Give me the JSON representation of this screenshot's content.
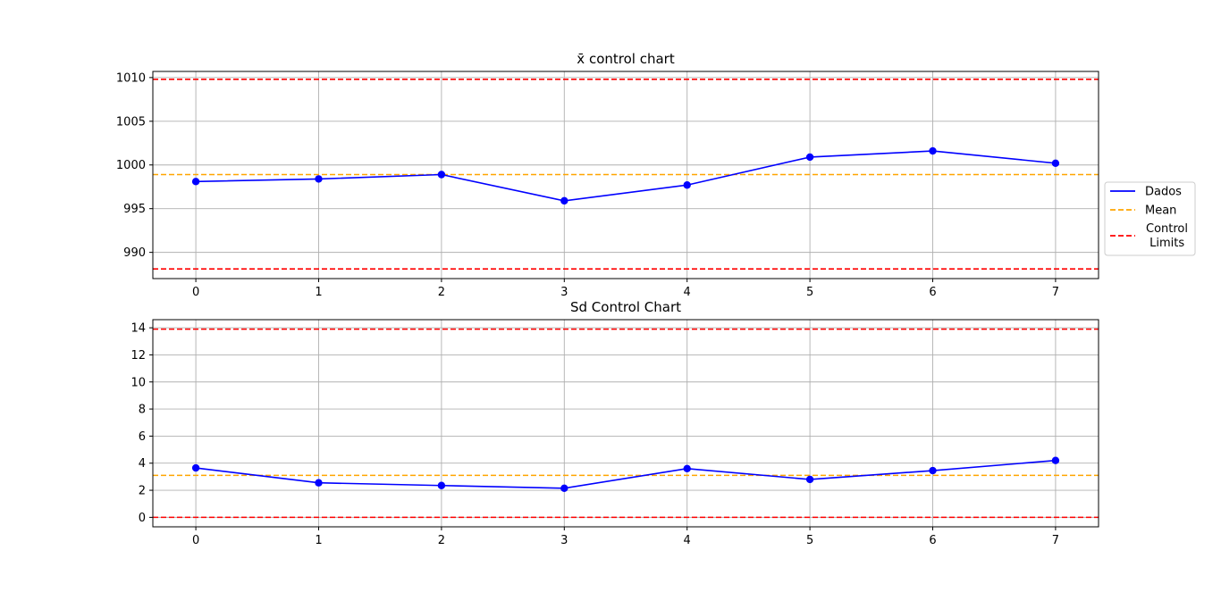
{
  "legend": {
    "entries": [
      {
        "label": "Dados",
        "color": "#0000ff",
        "style": "solid"
      },
      {
        "label": "Mean",
        "color": "#ffa500",
        "style": "dashed"
      },
      {
        "label_lines": [
          "Control",
          " Limits"
        ],
        "color": "#ff0000",
        "style": "dashed"
      }
    ],
    "placement": "right-of-top-chart"
  },
  "chart_data": [
    {
      "type": "line",
      "title": "x̄ control chart",
      "xlabel": "",
      "ylabel": "",
      "x": [
        0,
        1,
        2,
        3,
        4,
        5,
        6,
        7
      ],
      "xlim": [
        -0.35,
        7.35
      ],
      "ylim": [
        987,
        1010.7
      ],
      "yticks": [
        990,
        995,
        1000,
        1005,
        1010
      ],
      "grid": true,
      "series": [
        {
          "name": "Dados",
          "color": "#0000ff",
          "markers": true,
          "values": [
            998.1,
            998.4,
            998.9,
            995.9,
            997.7,
            1000.9,
            1001.6,
            1000.2
          ]
        }
      ],
      "reference_lines": [
        {
          "name": "Mean",
          "y": 998.9,
          "color": "#ffa500",
          "style": "dashed"
        },
        {
          "name": "Control Limits",
          "y": 1009.8,
          "color": "#ff0000",
          "style": "dashed"
        },
        {
          "name": "Control Limits",
          "y": 988.1,
          "color": "#ff0000",
          "style": "dashed"
        }
      ]
    },
    {
      "type": "line",
      "title": "Sd Control Chart",
      "xlabel": "",
      "ylabel": "",
      "x": [
        0,
        1,
        2,
        3,
        4,
        5,
        6,
        7
      ],
      "xlim": [
        -0.35,
        7.35
      ],
      "ylim": [
        -0.7,
        14.6
      ],
      "yticks": [
        0,
        2,
        4,
        6,
        8,
        10,
        12,
        14
      ],
      "grid": true,
      "series": [
        {
          "name": "Dados",
          "color": "#0000ff",
          "markers": true,
          "values": [
            3.65,
            2.55,
            2.35,
            2.15,
            3.6,
            2.8,
            3.45,
            4.2
          ]
        }
      ],
      "reference_lines": [
        {
          "name": "Mean",
          "y": 3.1,
          "color": "#ffa500",
          "style": "dashed"
        },
        {
          "name": "Control Limits",
          "y": 13.9,
          "color": "#ff0000",
          "style": "dashed"
        },
        {
          "name": "Control Limits",
          "y": 0,
          "color": "#ff0000",
          "style": "dashed"
        }
      ]
    }
  ]
}
